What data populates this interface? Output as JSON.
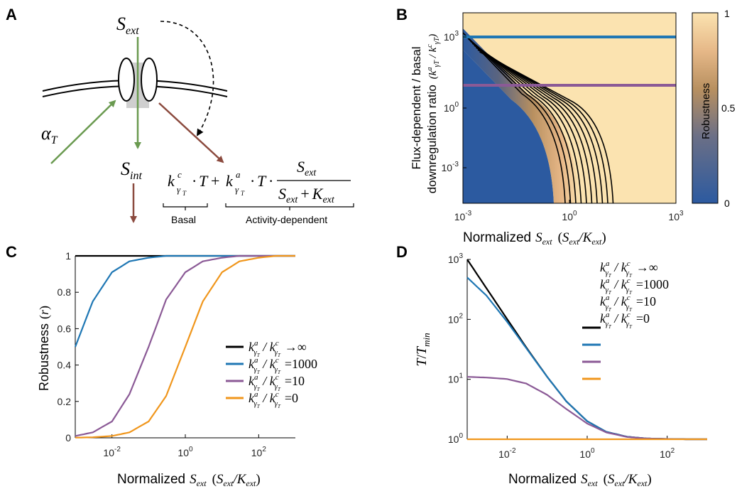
{
  "panels": {
    "A": {
      "letter": "A",
      "s_ext": "S",
      "s_ext_sub": "ext",
      "s_int": "S",
      "s_int_sub": "int",
      "alpha": "α",
      "alpha_sub": "T",
      "eq_basal_label": "Basal",
      "eq_activity_label": "Activity-dependent",
      "eq_k": "k",
      "eq_c": "c",
      "eq_a": "a",
      "eq_gamma": "γ",
      "eq_T": "T",
      "eq_plus": "+",
      "eq_dot": "·",
      "eq_num": "S",
      "eq_num_sub": "ext",
      "eq_den1": "S",
      "eq_den1_sub": "ext",
      "eq_den_plus": "+",
      "eq_den2": "K",
      "eq_den2_sub": "ext",
      "colors": {
        "green": "#6a9a50",
        "red": "#8b4a3e"
      }
    },
    "B": {
      "letter": "B",
      "colorbar_label": "Robustness",
      "colorbar_ticks": [
        "0",
        "0.5",
        "1"
      ],
      "ylabel_line1": "Flux-dependent / basal",
      "ylabel_line2": "downregulation ratio",
      "y_ticks": [
        {
          "base": "10",
          "exp": "-3"
        },
        {
          "base": "10",
          "exp": "0"
        },
        {
          "base": "10",
          "exp": "3"
        }
      ],
      "x_ticks": [
        {
          "base": "10",
          "exp": "-3"
        },
        {
          "base": "10",
          "exp": "0"
        },
        {
          "base": "10",
          "exp": "3"
        }
      ],
      "xlabel_prefix": "Normalized",
      "colors": {
        "low": "#2c5aa0",
        "mid": "#b89060",
        "high": "#fbe3b0",
        "blue_line": "#1f77b4",
        "purple_line": "#8b5a96"
      }
    },
    "C": {
      "letter": "C",
      "ylabel": "Robustness",
      "ylabel_sym": "r",
      "xlabel_prefix": "Normalized",
      "y_tick_labels": [
        "0",
        "0.2",
        "0.4",
        "0.6",
        "0.8",
        "1"
      ],
      "x_tick_labels": [
        {
          "base": "10",
          "exp": "-2"
        },
        {
          "base": "10",
          "exp": "0"
        },
        {
          "base": "10",
          "exp": "2"
        }
      ]
    },
    "D": {
      "letter": "D",
      "ylabel": "T",
      "ylabel_den": "T",
      "ylabel_den_sub": "min",
      "xlabel_prefix": "Normalized",
      "y_tick_labels": [
        {
          "base": "10",
          "exp": "0"
        },
        {
          "base": "10",
          "exp": "1"
        },
        {
          "base": "10",
          "exp": "2"
        },
        {
          "base": "10",
          "exp": "3"
        }
      ],
      "x_tick_labels": [
        {
          "base": "10",
          "exp": "-2"
        },
        {
          "base": "10",
          "exp": "0"
        },
        {
          "base": "10",
          "exp": "2"
        }
      ]
    }
  },
  "legend": {
    "entries": [
      "→∞",
      "=1000",
      "=10",
      "=0"
    ],
    "colors": [
      "#000000",
      "#1f77b4",
      "#8b5a96",
      "#f0961c"
    ]
  },
  "chart_data": [
    {
      "type": "heatmap",
      "panel": "B",
      "xlabel": "Normalized S_ext (S_ext/K_ext)",
      "ylabel": "Flux-dependent / basal downregulation ratio (k_γT^a / k_γT^c)",
      "x_scale": "log",
      "y_scale": "log",
      "xlim": [
        0.001,
        1000
      ],
      "ylim": [
        0.0001,
        10000
      ],
      "colorbar": {
        "label": "Robustness",
        "range": [
          0,
          1
        ],
        "ticks": [
          0,
          0.5,
          1
        ]
      },
      "horizontal_lines": [
        {
          "y": 1000,
          "color": "#1f77b4"
        },
        {
          "y": 10,
          "color": "#8b5a96"
        }
      ]
    },
    {
      "type": "line",
      "panel": "C",
      "xlabel": "Normalized S_ext (S_ext/K_ext)",
      "ylabel": "Robustness (r)",
      "x_scale": "log",
      "xlim": [
        0.001,
        1000
      ],
      "ylim": [
        0,
        1
      ],
      "x": [
        0.001,
        0.003,
        0.01,
        0.03,
        0.1,
        0.3,
        1,
        3,
        10,
        30,
        100,
        300,
        1000
      ],
      "series": [
        {
          "name": "k_γT^a / k_γT^c → ∞",
          "color": "#000000",
          "values": [
            1,
            1,
            1,
            1,
            1,
            1,
            1,
            1,
            1,
            1,
            1,
            1,
            1
          ]
        },
        {
          "name": "k_γT^a / k_γT^c = 1000",
          "color": "#1f77b4",
          "values": [
            0.5,
            0.75,
            0.91,
            0.97,
            0.99,
            1,
            1,
            1,
            1,
            1,
            1,
            1,
            1
          ]
        },
        {
          "name": "k_γT^a / k_γT^c = 10",
          "color": "#8b5a96",
          "values": [
            0.01,
            0.03,
            0.09,
            0.24,
            0.5,
            0.76,
            0.91,
            0.97,
            0.99,
            1,
            1,
            1,
            1
          ]
        },
        {
          "name": "k_γT^a / k_γT^c = 0",
          "color": "#f0961c",
          "values": [
            0.001,
            0.003,
            0.01,
            0.03,
            0.09,
            0.23,
            0.5,
            0.75,
            0.91,
            0.97,
            0.99,
            1,
            1
          ]
        }
      ]
    },
    {
      "type": "line",
      "panel": "D",
      "xlabel": "Normalized S_ext (S_ext/K_ext)",
      "ylabel": "T/T_min",
      "x_scale": "log",
      "y_scale": "log",
      "xlim": [
        0.001,
        1000
      ],
      "ylim": [
        1,
        1000
      ],
      "x": [
        0.001,
        0.003,
        0.01,
        0.03,
        0.1,
        0.3,
        1,
        3,
        10,
        30,
        100,
        300,
        1000
      ],
      "series": [
        {
          "name": "k_γT^a / k_γT^c → ∞",
          "color": "#000000",
          "values": [
            1000,
            334,
            101,
            34,
            11,
            4.3,
            2,
            1.33,
            1.1,
            1.03,
            1.01,
            1,
            1
          ]
        },
        {
          "name": "k_γT^a / k_γT^c = 1000",
          "color": "#1f77b4",
          "values": [
            500,
            251,
            91,
            33,
            11,
            4.3,
            2,
            1.33,
            1.1,
            1.03,
            1.01,
            1,
            1
          ]
        },
        {
          "name": "k_γT^a / k_γT^c = 10",
          "color": "#8b5a96",
          "values": [
            11,
            10.7,
            10.1,
            8.5,
            5.5,
            3.2,
            1.83,
            1.3,
            1.09,
            1.03,
            1.01,
            1,
            1
          ]
        },
        {
          "name": "k_γT^a / k_γT^c = 0",
          "color": "#f0961c",
          "values": [
            1,
            1,
            1,
            1,
            1,
            1,
            1,
            1,
            1,
            1,
            1,
            1,
            1
          ]
        }
      ]
    }
  ]
}
